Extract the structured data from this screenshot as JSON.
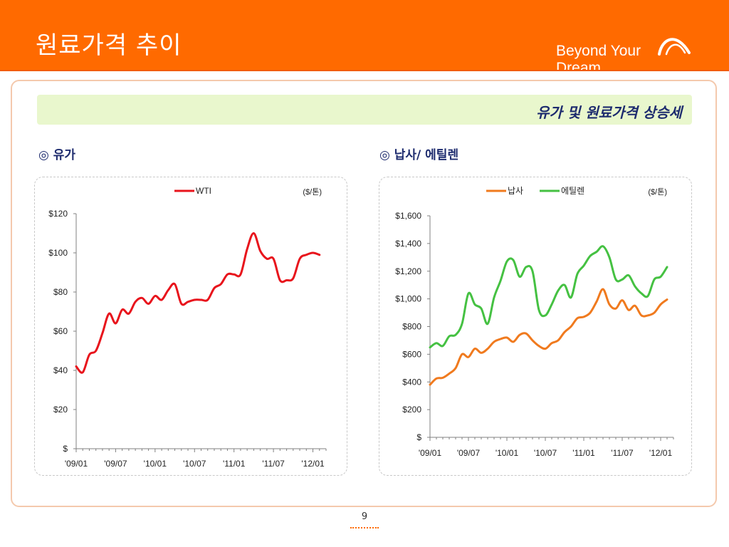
{
  "header": {
    "title": "원료가격 추이",
    "brand": "Beyond Your Dream"
  },
  "subtitle": "유가 및 원료가격 상승세",
  "colors": {
    "accent": "#ff6a00",
    "wti": "#e8141c",
    "naphtha": "#f07a1e",
    "ethylene": "#45c142",
    "heading": "#1d2b6e"
  },
  "sections": {
    "left_heading": "◎ 유가",
    "right_heading": "◎ 납사/ 에틸렌"
  },
  "page_number": "9",
  "chart_data": [
    {
      "type": "line",
      "unit_label": "($/톤)",
      "ylim": [
        0,
        120
      ],
      "yticks": [
        0,
        20,
        40,
        60,
        80,
        100,
        120
      ],
      "ytick_labels": [
        "$",
        "$20",
        "$40",
        "$60",
        "$80",
        "$100",
        "$120"
      ],
      "xlim": [
        0,
        38
      ],
      "xticks": [
        0,
        6,
        12,
        18,
        24,
        30,
        36
      ],
      "xtick_labels": [
        "'09/01",
        "'09/07",
        "'10/01",
        "'10/07",
        "'11/01",
        "'11/07",
        "'12/01"
      ],
      "legend_position": "top",
      "grid": false,
      "series": [
        {
          "name": "WTI",
          "color": "#e8141c",
          "x": [
            0,
            1,
            2,
            3,
            4,
            5,
            6,
            7,
            8,
            9,
            10,
            11,
            12,
            13,
            14,
            15,
            16,
            17,
            18,
            19,
            20,
            21,
            22,
            23,
            24,
            25,
            26,
            27,
            28,
            29,
            30,
            31,
            32,
            33,
            34,
            35,
            36,
            37
          ],
          "values": [
            42,
            39,
            48,
            50,
            59,
            69,
            64,
            71,
            69,
            75,
            77,
            74,
            78,
            76,
            81,
            84,
            74,
            75,
            76,
            76,
            76,
            82,
            84,
            89,
            89,
            89,
            102,
            110,
            101,
            97,
            97,
            86,
            86,
            87,
            97,
            99,
            100,
            99
          ]
        }
      ]
    },
    {
      "type": "line",
      "unit_label": "($/톤)",
      "ylim": [
        0,
        1600
      ],
      "yticks": [
        0,
        200,
        400,
        600,
        800,
        1000,
        1200,
        1400,
        1600
      ],
      "ytick_labels": [
        "$",
        "$200",
        "$400",
        "$600",
        "$800",
        "$1,000",
        "$1,200",
        "$1,400",
        "$1,600"
      ],
      "xlim": [
        0,
        38
      ],
      "xticks": [
        0,
        6,
        12,
        18,
        24,
        30,
        36
      ],
      "xtick_labels": [
        "'09/01",
        "'09/07",
        "'10/01",
        "'10/07",
        "'11/01",
        "'11/07",
        "'12/01"
      ],
      "legend_position": "top",
      "grid": false,
      "series": [
        {
          "name": "납사",
          "color": "#f07a1e",
          "x": [
            0,
            1,
            2,
            3,
            4,
            5,
            6,
            7,
            8,
            9,
            10,
            11,
            12,
            13,
            14,
            15,
            16,
            17,
            18,
            19,
            20,
            21,
            22,
            23,
            24,
            25,
            26,
            27,
            28,
            29,
            30,
            31,
            32,
            33,
            34,
            35,
            36,
            37
          ],
          "values": [
            380,
            425,
            430,
            460,
            500,
            600,
            580,
            640,
            610,
            640,
            690,
            710,
            720,
            690,
            740,
            750,
            700,
            660,
            640,
            680,
            700,
            760,
            800,
            860,
            870,
            900,
            980,
            1070,
            960,
            930,
            990,
            920,
            950,
            880,
            880,
            900,
            960,
            995
          ]
        },
        {
          "name": "에틸렌",
          "color": "#45c142",
          "x": [
            0,
            1,
            2,
            3,
            4,
            5,
            6,
            7,
            8,
            9,
            10,
            11,
            12,
            13,
            14,
            15,
            16,
            17,
            18,
            19,
            20,
            21,
            22,
            23,
            24,
            25,
            26,
            27,
            28,
            29,
            30,
            31,
            32,
            33,
            34,
            35,
            36,
            37
          ],
          "values": [
            650,
            680,
            660,
            730,
            740,
            820,
            1040,
            960,
            930,
            820,
            1010,
            1130,
            1270,
            1280,
            1160,
            1230,
            1200,
            920,
            880,
            960,
            1060,
            1100,
            1010,
            1180,
            1240,
            1310,
            1340,
            1380,
            1300,
            1140,
            1140,
            1170,
            1090,
            1040,
            1020,
            1140,
            1160,
            1230
          ]
        }
      ]
    }
  ]
}
